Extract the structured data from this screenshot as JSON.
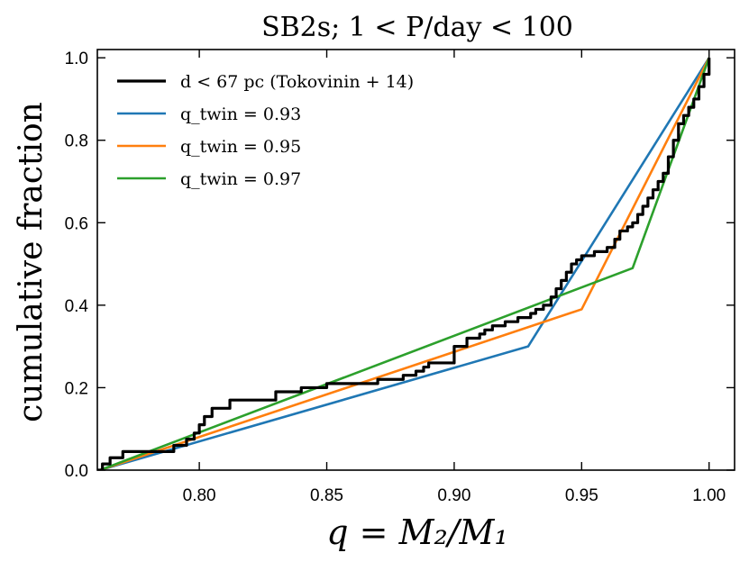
{
  "chart_data": {
    "type": "line",
    "title": "SB2s;  1 < P/day < 100",
    "xlabel": "q = M₂/M₁",
    "ylabel": "cumulative fraction",
    "xlim": [
      0.76,
      1.01
    ],
    "ylim": [
      0.0,
      1.02
    ],
    "xticks": [
      0.8,
      0.85,
      0.9,
      0.95,
      1.0
    ],
    "xtick_labels": [
      "0.80",
      "0.85",
      "0.90",
      "0.95",
      "1.00"
    ],
    "yticks": [
      0.0,
      0.2,
      0.4,
      0.6,
      0.8,
      1.0
    ],
    "ytick_labels": [
      "0.0",
      "0.2",
      "0.4",
      "0.6",
      "0.8",
      "1.0"
    ],
    "legend_position": "upper-left",
    "series": [
      {
        "name": "d < 67 pc (Tokovinin + 14)",
        "color": "#000000",
        "style": "step",
        "x": [
          0.76,
          0.762,
          0.765,
          0.77,
          0.79,
          0.795,
          0.798,
          0.8,
          0.802,
          0.805,
          0.812,
          0.83,
          0.84,
          0.85,
          0.87,
          0.88,
          0.885,
          0.888,
          0.89,
          0.9,
          0.905,
          0.91,
          0.912,
          0.915,
          0.92,
          0.925,
          0.93,
          0.932,
          0.935,
          0.938,
          0.94,
          0.942,
          0.944,
          0.946,
          0.948,
          0.95,
          0.955,
          0.96,
          0.963,
          0.965,
          0.968,
          0.97,
          0.972,
          0.974,
          0.976,
          0.978,
          0.98,
          0.982,
          0.984,
          0.986,
          0.988,
          0.99,
          0.992,
          0.994,
          0.996,
          0.998,
          1.0
        ],
        "y": [
          0.0,
          0.015,
          0.03,
          0.045,
          0.06,
          0.075,
          0.09,
          0.11,
          0.13,
          0.15,
          0.17,
          0.19,
          0.2,
          0.21,
          0.22,
          0.23,
          0.24,
          0.25,
          0.26,
          0.3,
          0.32,
          0.33,
          0.34,
          0.35,
          0.36,
          0.37,
          0.38,
          0.39,
          0.4,
          0.42,
          0.44,
          0.46,
          0.48,
          0.5,
          0.51,
          0.52,
          0.53,
          0.54,
          0.56,
          0.58,
          0.59,
          0.6,
          0.62,
          0.64,
          0.66,
          0.68,
          0.7,
          0.72,
          0.76,
          0.8,
          0.84,
          0.86,
          0.88,
          0.9,
          0.93,
          0.96,
          1.0
        ]
      },
      {
        "name": "q_twin = 0.93",
        "color": "#1f77b4",
        "style": "line",
        "x": [
          0.761,
          0.929,
          1.0
        ],
        "y": [
          0.0,
          0.3,
          1.0
        ]
      },
      {
        "name": "q_twin = 0.95",
        "color": "#ff7f0e",
        "style": "line",
        "x": [
          0.761,
          0.95,
          1.0
        ],
        "y": [
          0.0,
          0.39,
          1.0
        ]
      },
      {
        "name": "q_twin = 0.97",
        "color": "#2ca02c",
        "style": "line",
        "x": [
          0.761,
          0.97,
          1.0
        ],
        "y": [
          0.0,
          0.49,
          1.0
        ]
      }
    ]
  }
}
